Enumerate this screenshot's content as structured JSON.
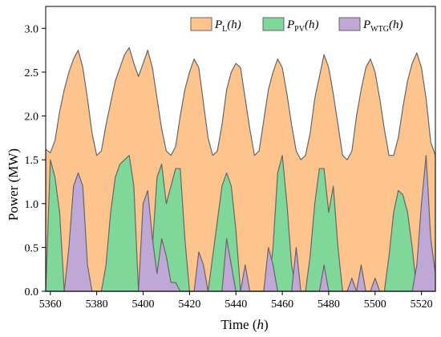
{
  "chart_data": {
    "type": "area",
    "xlabel": "Time (",
    "xlabel_var": "h",
    "xlabel_close": ")",
    "ylabel": "Power (MW)",
    "xlim": [
      5358,
      5526
    ],
    "ylim": [
      0,
      3.25
    ],
    "x_ticks": [
      5360,
      5380,
      5400,
      5420,
      5440,
      5460,
      5480,
      5500,
      5520
    ],
    "y_ticks": [
      "0.0",
      "0.5",
      "1.0",
      "1.5",
      "2.0",
      "2.5",
      "3.0"
    ],
    "legend_position": "top-right",
    "series": [
      {
        "name": "P_L(h)",
        "legend_main": "P",
        "legend_sub": "L",
        "legend_tail": "(h)",
        "color": "#FDC48E",
        "x": [
          5358,
          5360,
          5362,
          5364,
          5366,
          5368,
          5370,
          5372,
          5374,
          5376,
          5378,
          5380,
          5382,
          5384,
          5386,
          5388,
          5390,
          5392,
          5394,
          5396,
          5398,
          5400,
          5402,
          5404,
          5406,
          5408,
          5410,
          5412,
          5414,
          5416,
          5418,
          5420,
          5422,
          5424,
          5426,
          5428,
          5430,
          5432,
          5434,
          5436,
          5438,
          5440,
          5442,
          5444,
          5446,
          5448,
          5450,
          5452,
          5454,
          5456,
          5458,
          5460,
          5462,
          5464,
          5466,
          5468,
          5470,
          5472,
          5474,
          5476,
          5478,
          5480,
          5482,
          5484,
          5486,
          5488,
          5490,
          5492,
          5494,
          5496,
          5498,
          5500,
          5502,
          5504,
          5506,
          5508,
          5510,
          5512,
          5514,
          5516,
          5518,
          5520,
          5522,
          5524,
          5526
        ],
        "values": [
          1.62,
          1.58,
          1.72,
          2.05,
          2.3,
          2.5,
          2.65,
          2.75,
          2.55,
          2.2,
          1.8,
          1.55,
          1.6,
          1.9,
          2.15,
          2.4,
          2.55,
          2.7,
          2.78,
          2.6,
          2.45,
          2.6,
          2.75,
          2.55,
          2.2,
          1.85,
          1.6,
          1.55,
          1.65,
          2.0,
          2.3,
          2.5,
          2.65,
          2.55,
          2.15,
          1.75,
          1.55,
          1.6,
          1.9,
          2.3,
          2.5,
          2.6,
          2.55,
          2.2,
          1.85,
          1.55,
          1.6,
          1.95,
          2.3,
          2.5,
          2.65,
          2.55,
          2.25,
          1.9,
          1.6,
          1.5,
          1.55,
          1.8,
          2.2,
          2.45,
          2.7,
          2.55,
          2.25,
          1.9,
          1.55,
          1.5,
          1.6,
          2.0,
          2.3,
          2.55,
          2.65,
          2.5,
          2.2,
          1.85,
          1.55,
          1.55,
          1.75,
          2.1,
          2.4,
          2.6,
          2.72,
          2.55,
          2.2,
          1.7,
          1.55
        ]
      },
      {
        "name": "P_PV(h)",
        "legend_main": "P",
        "legend_sub": "PV",
        "legend_tail": "(h)",
        "color": "#7FD89A",
        "x": [
          5358,
          5360,
          5362,
          5364,
          5366,
          5368,
          5370,
          5372,
          5374,
          5376,
          5378,
          5380,
          5382,
          5384,
          5386,
          5388,
          5390,
          5392,
          5394,
          5396,
          5398,
          5400,
          5402,
          5404,
          5406,
          5408,
          5410,
          5412,
          5414,
          5416,
          5418,
          5420,
          5422,
          5424,
          5426,
          5428,
          5430,
          5432,
          5434,
          5436,
          5438,
          5440,
          5442,
          5444,
          5446,
          5448,
          5450,
          5452,
          5454,
          5456,
          5458,
          5460,
          5462,
          5464,
          5466,
          5468,
          5470,
          5472,
          5474,
          5476,
          5478,
          5480,
          5482,
          5484,
          5486,
          5488,
          5490,
          5492,
          5494,
          5496,
          5498,
          5500,
          5502,
          5504,
          5506,
          5508,
          5510,
          5512,
          5514,
          5516,
          5518,
          5520,
          5522,
          5524,
          5526
        ],
        "values": [
          0.0,
          1.5,
          1.3,
          0.9,
          0.0,
          0.0,
          0.0,
          0.0,
          0.0,
          0.0,
          0.0,
          0.0,
          0.0,
          0.3,
          0.9,
          1.3,
          1.45,
          1.5,
          1.55,
          1.2,
          0.0,
          0.0,
          0.0,
          0.5,
          1.3,
          1.45,
          1.0,
          1.2,
          1.4,
          1.4,
          0.6,
          0.0,
          0.0,
          0.0,
          0.0,
          0.0,
          0.4,
          0.8,
          1.2,
          1.35,
          1.2,
          0.7,
          0.0,
          0.0,
          0.0,
          0.0,
          0.0,
          0.0,
          0.0,
          0.5,
          1.35,
          1.55,
          1.0,
          0.3,
          0.0,
          0.0,
          0.0,
          0.4,
          1.0,
          1.4,
          1.4,
          0.9,
          1.2,
          0.5,
          0.0,
          0.0,
          0.0,
          0.0,
          0.0,
          0.0,
          0.0,
          0.0,
          0.0,
          0.0,
          0.4,
          0.9,
          1.15,
          1.1,
          0.9,
          0.5,
          0.0,
          0.0,
          0.0,
          0.0,
          0.0
        ]
      },
      {
        "name": "P_WTG(h)",
        "legend_main": "P",
        "legend_sub": "WTG",
        "legend_tail": "(h)",
        "color": "#C0A8D6",
        "x": [
          5358,
          5360,
          5362,
          5364,
          5366,
          5368,
          5370,
          5372,
          5374,
          5376,
          5378,
          5380,
          5382,
          5384,
          5386,
          5388,
          5390,
          5392,
          5394,
          5396,
          5398,
          5400,
          5402,
          5404,
          5406,
          5408,
          5410,
          5412,
          5414,
          5416,
          5418,
          5420,
          5422,
          5424,
          5426,
          5428,
          5430,
          5432,
          5434,
          5436,
          5438,
          5440,
          5442,
          5444,
          5446,
          5448,
          5450,
          5452,
          5454,
          5456,
          5458,
          5460,
          5462,
          5464,
          5466,
          5468,
          5470,
          5472,
          5474,
          5476,
          5478,
          5480,
          5482,
          5484,
          5486,
          5488,
          5490,
          5492,
          5494,
          5496,
          5498,
          5500,
          5502,
          5504,
          5506,
          5508,
          5510,
          5512,
          5514,
          5516,
          5518,
          5520,
          5522,
          5524,
          5526
        ],
        "values": [
          0.0,
          0.0,
          0.0,
          0.0,
          0.0,
          0.5,
          1.2,
          1.35,
          1.2,
          0.3,
          0.0,
          0.0,
          0.0,
          0.0,
          0.0,
          0.0,
          0.0,
          0.0,
          0.0,
          0.0,
          0.0,
          1.0,
          1.15,
          0.6,
          0.2,
          0.6,
          0.4,
          0.1,
          0.1,
          0.0,
          0.0,
          0.0,
          0.0,
          0.45,
          0.3,
          0.0,
          0.0,
          0.0,
          0.0,
          0.6,
          0.3,
          0.0,
          0.0,
          0.3,
          0.0,
          0.0,
          0.0,
          0.0,
          0.5,
          0.3,
          0.0,
          0.0,
          0.0,
          0.0,
          0.5,
          0.0,
          0.0,
          0.0,
          0.0,
          0.0,
          0.3,
          0.0,
          0.0,
          0.0,
          0.0,
          0.0,
          0.15,
          0.0,
          0.3,
          0.0,
          0.0,
          0.15,
          0.0,
          0.0,
          0.0,
          0.0,
          0.0,
          0.0,
          0.0,
          0.0,
          0.3,
          1.0,
          1.55,
          0.6,
          0.2
        ]
      }
    ]
  }
}
